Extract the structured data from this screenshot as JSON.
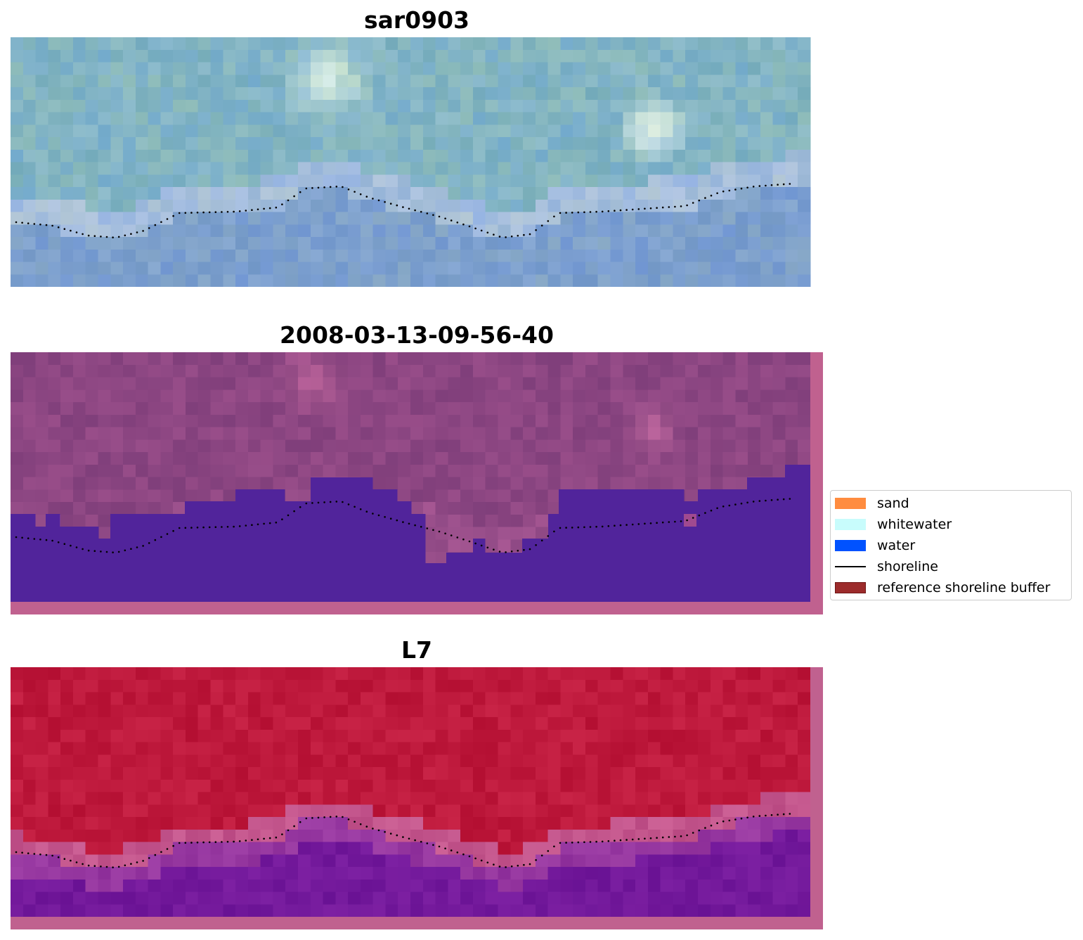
{
  "panels": [
    {
      "title": "sar0903",
      "palette": "rgb"
    },
    {
      "title": "2008-03-13-09-56-40",
      "palette": "classified"
    },
    {
      "title": "L7",
      "palette": "index"
    }
  ],
  "legend": {
    "items": [
      {
        "label": "sand",
        "kind": "patch",
        "color": "#ff8c3f"
      },
      {
        "label": "whitewater",
        "kind": "patch",
        "color": "#c8fcfc"
      },
      {
        "label": "water",
        "kind": "patch",
        "color": "#0052ff"
      },
      {
        "label": "shoreline",
        "kind": "line",
        "color": "#000000"
      },
      {
        "label": "reference shoreline buffer",
        "kind": "patch",
        "color": "#9c2b2b",
        "border": "#6e1515"
      }
    ]
  },
  "colors": {
    "water_overlay": "#51249b",
    "buffer_overlay": "#c0618f",
    "shoreline_dots": "#000000"
  }
}
